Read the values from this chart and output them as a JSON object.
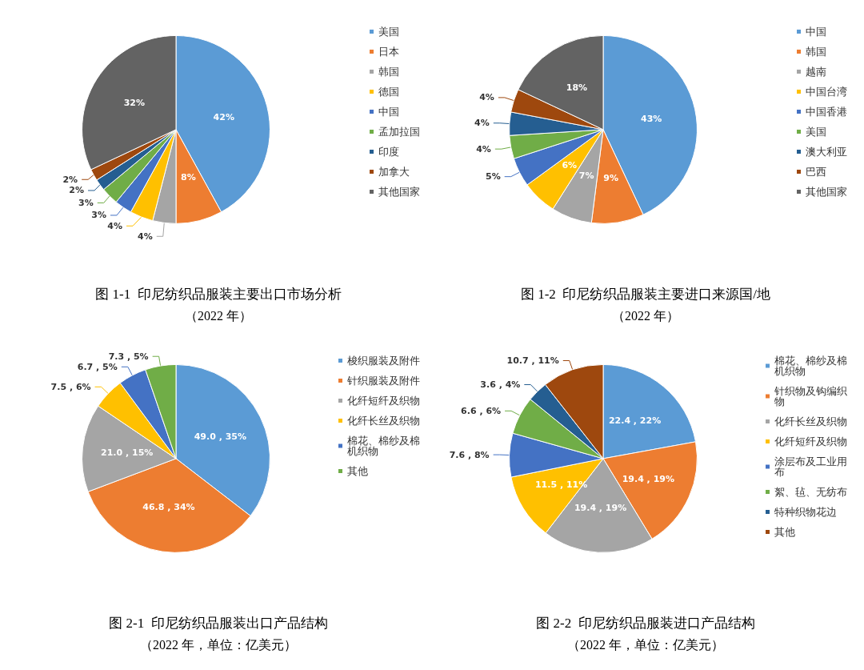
{
  "chart_data": [
    {
      "type": "pie",
      "title": "图 1-1  印尼纺织品服装主要出口市场分析",
      "subtitle": "（2022 年）",
      "categories": [
        "美国",
        "日本",
        "韩国",
        "德国",
        "中国",
        "孟加拉国",
        "印度",
        "加拿大",
        "其他国家"
      ],
      "values": [
        42,
        8,
        4,
        4,
        3,
        3,
        2,
        2,
        32
      ],
      "value_labels": [
        "42%",
        "8%",
        "4%",
        "4%",
        "3%",
        "3%",
        "2%",
        "2%",
        "32%"
      ],
      "colors": [
        "#5b9bd5",
        "#ed7d31",
        "#a5a5a5",
        "#ffc000",
        "#4472c4",
        "#70ad47",
        "#255e91",
        "#9e480e",
        "#636363"
      ],
      "legend": "right"
    },
    {
      "type": "pie",
      "title": "图 1-2  印尼纺织品服装主要进口来源国/地",
      "subtitle": "（2022 年）",
      "categories": [
        "中国",
        "韩国",
        "越南",
        "中国台湾",
        "中国香港",
        "美国",
        "澳大利亚",
        "巴西",
        "其他国家"
      ],
      "values": [
        43,
        9,
        7,
        6,
        5,
        4,
        4,
        4,
        18
      ],
      "value_labels": [
        "43%",
        "9%",
        "7%",
        "6%",
        "5%",
        "4%",
        "4%",
        "4%",
        "18%"
      ],
      "colors": [
        "#5b9bd5",
        "#ed7d31",
        "#a5a5a5",
        "#ffc000",
        "#4472c4",
        "#70ad47",
        "#255e91",
        "#9e480e",
        "#636363"
      ],
      "legend": "right"
    },
    {
      "type": "pie",
      "title": "图 2-1  印尼纺织品服装出口产品结构",
      "subtitle": "（2022 年，单位：亿美元）",
      "categories": [
        "梭织服装及附件",
        "针织服装及附件",
        "化纤短纤及织物",
        "化纤长丝及织物",
        "棉花、棉纱及棉机织物",
        "其他"
      ],
      "values": [
        49.0,
        46.8,
        21.0,
        7.5,
        6.7,
        7.3
      ],
      "value_labels": [
        "49.0 , 35%",
        "46.8 , 34%",
        "21.0 , 15%",
        "7.5 , 6%",
        "6.7 , 5%",
        "7.3 , 5%"
      ],
      "colors": [
        "#5b9bd5",
        "#ed7d31",
        "#a5a5a5",
        "#ffc000",
        "#4472c4",
        "#70ad47"
      ],
      "legend": "right"
    },
    {
      "type": "pie",
      "title": "图 2-2  印尼纺织品服装进口产品结构",
      "subtitle": "（2022 年，单位：亿美元）",
      "categories": [
        "棉花、棉纱及棉机织物",
        "针织物及钩编织物",
        "化纤长丝及织物",
        "化纤短纤及织物",
        "涂层布及工业用布",
        "絮、毡、无纺布",
        "特种织物花边",
        "其他"
      ],
      "values": [
        22.4,
        19.4,
        19.4,
        11.5,
        7.6,
        6.6,
        3.6,
        10.7
      ],
      "value_labels": [
        "22.4 , 22%",
        "19.4 , 19%",
        "19.4 , 19%",
        "11.5 , 11%",
        "7.6 , 8%",
        "6.6 , 6%",
        "3.6 , 4%",
        "10.7 , 11%"
      ],
      "colors": [
        "#5b9bd5",
        "#ed7d31",
        "#a5a5a5",
        "#ffc000",
        "#4472c4",
        "#70ad47",
        "#255e91",
        "#9e480e"
      ],
      "legend": "right"
    }
  ]
}
